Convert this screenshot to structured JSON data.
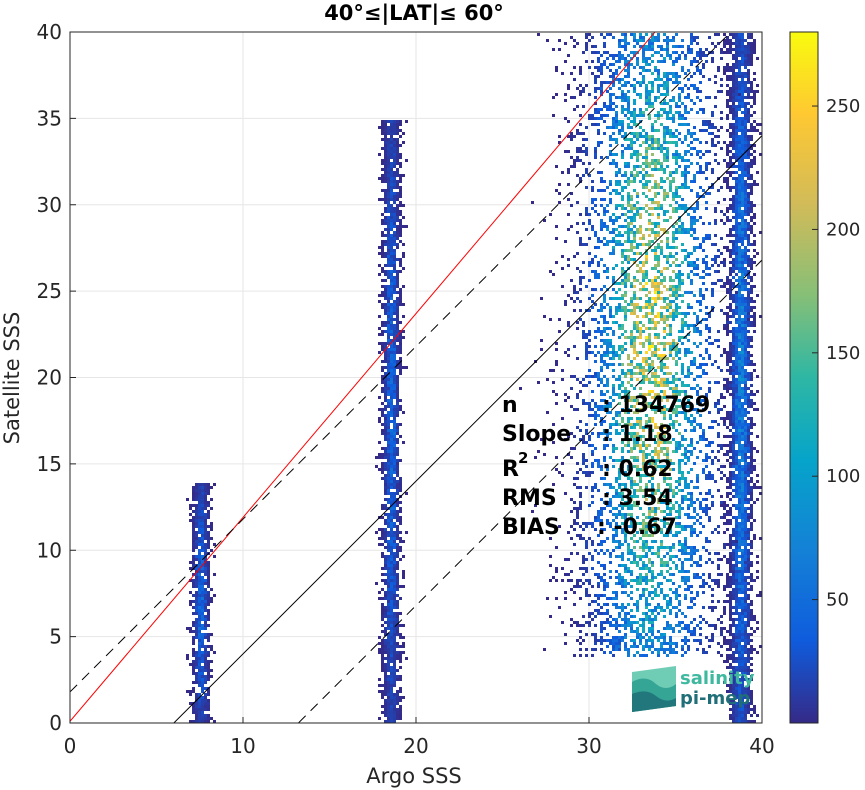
{
  "chart_data": {
    "type": "heatmap",
    "title": "40°≤|LAT|≤ 60°",
    "xlabel": "Argo SSS",
    "ylabel": "Satellite SSS",
    "xlim": [
      0,
      40
    ],
    "ylim": [
      0,
      40
    ],
    "xticks": [
      "0",
      "10",
      "20",
      "30",
      "40"
    ],
    "yticks": [
      "0",
      "5",
      "10",
      "15",
      "20",
      "25",
      "30",
      "35",
      "40"
    ],
    "grid": true,
    "colormap": "parula",
    "colorbar": {
      "range": [
        0,
        280
      ],
      "ticks": [
        "50",
        "100",
        "150",
        "200",
        "250"
      ]
    },
    "density_clusters": [
      {
        "x_center": 7.5,
        "x_width": 0.3,
        "y_range": [
          0,
          14
        ],
        "peak_count": 60
      },
      {
        "x_center": 18.5,
        "x_width": 0.3,
        "y_range": [
          0,
          35
        ],
        "peak_count": 60
      },
      {
        "x_center": 33.5,
        "x_width": 2.5,
        "y_range": [
          4,
          40
        ],
        "peak_count": 280
      },
      {
        "x_center": 38.7,
        "x_width": 0.4,
        "y_range": [
          0,
          40
        ],
        "peak_count": 90
      }
    ],
    "reference_lines": [
      {
        "name": "regression",
        "color": "#ff0000",
        "style": "solid",
        "slope": 1.18,
        "intercept": 0.1
      },
      {
        "name": "one-to-one",
        "color": "#000000",
        "style": "solid",
        "slope": 1.0,
        "intercept": -6.0
      },
      {
        "name": "upper-bound",
        "color": "#000000",
        "style": "dashed",
        "slope": 1.0,
        "intercept": 1.8
      },
      {
        "name": "lower-bound",
        "color": "#000000",
        "style": "dashed",
        "slope": 1.0,
        "intercept": -13.2
      }
    ],
    "stats": [
      {
        "label": "n",
        "value": ": 134769"
      },
      {
        "label": "Slope",
        "value": ": 1.18"
      },
      {
        "label": "R",
        "superscript": "2",
        "value": ": 0.62"
      },
      {
        "label": "RMS",
        "value": ": 3.54"
      },
      {
        "label": "BIAS",
        "value": ": -0.67"
      }
    ]
  },
  "logo": {
    "line1": "salinity",
    "line2": "pi-mep",
    "color_top": "#3fb8a0",
    "color_bottom": "#1f6e78"
  },
  "colors": {
    "grid": "#e6e6e6",
    "axis": "#262626",
    "regression": "#ff0000"
  }
}
